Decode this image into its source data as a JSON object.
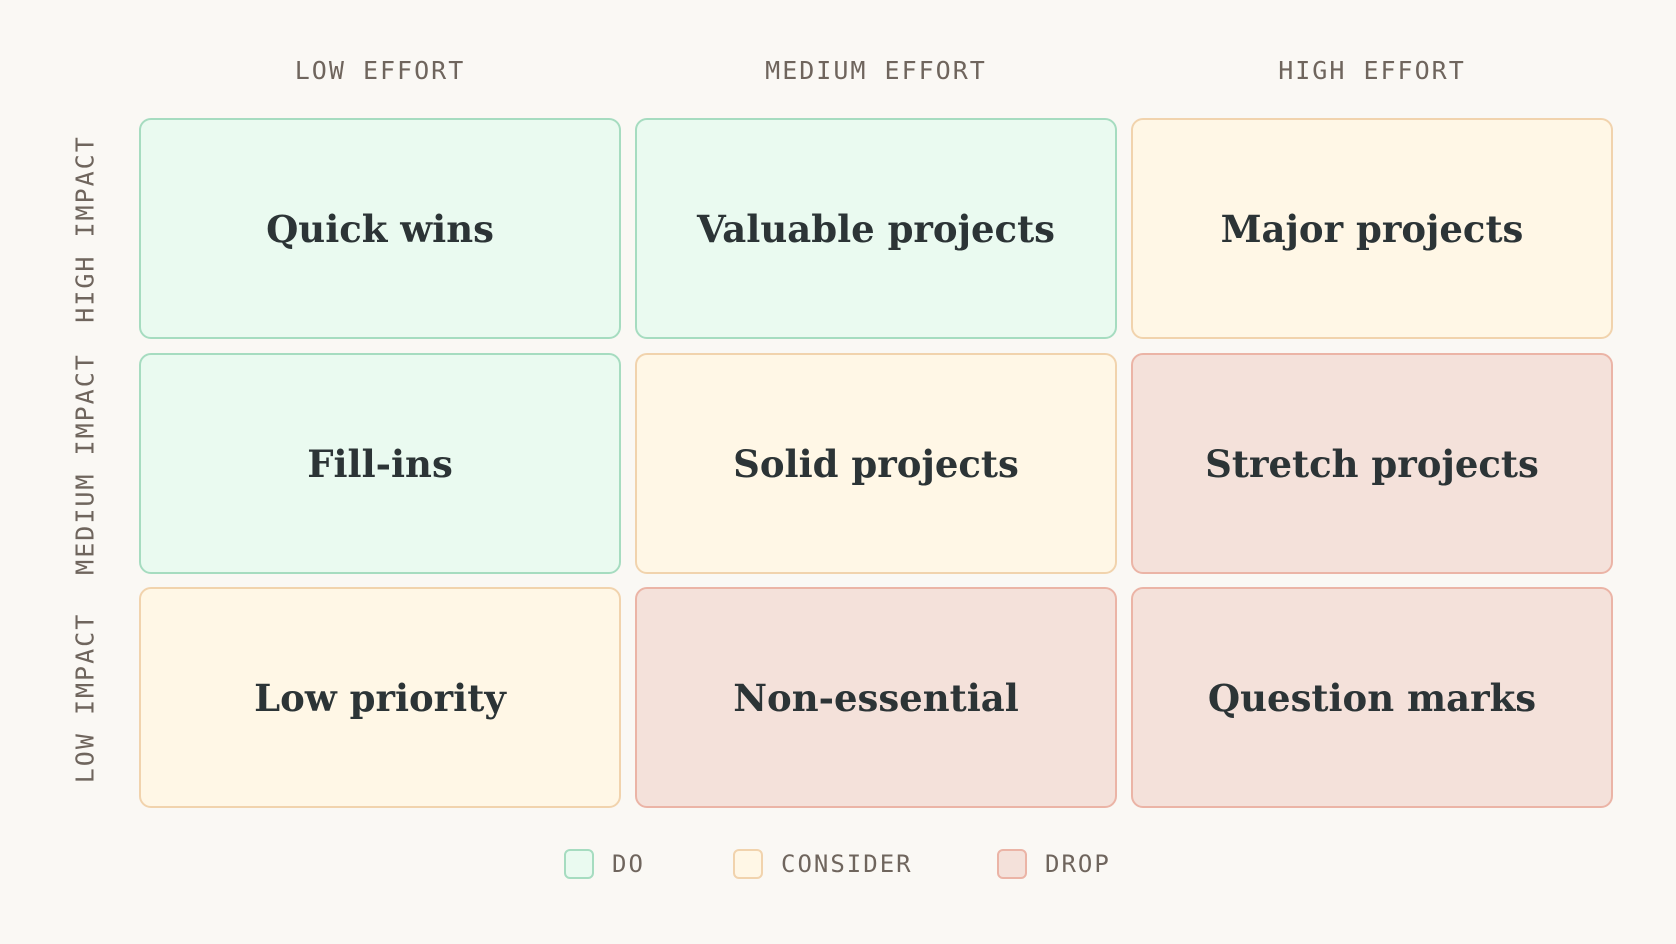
{
  "columns": [
    {
      "label": "LOW EFFORT"
    },
    {
      "label": "MEDIUM EFFORT"
    },
    {
      "label": "HIGH EFFORT"
    }
  ],
  "rows": [
    {
      "label": "HIGH IMPACT"
    },
    {
      "label": "MEDIUM IMPACT"
    },
    {
      "label": "LOW IMPACT"
    }
  ],
  "cells": [
    [
      {
        "label": "Quick wins",
        "category": "do"
      },
      {
        "label": "Valuable projects",
        "category": "do"
      },
      {
        "label": "Major projects",
        "category": "consider"
      }
    ],
    [
      {
        "label": "Fill-ins",
        "category": "do"
      },
      {
        "label": "Solid projects",
        "category": "consider"
      },
      {
        "label": "Stretch projects",
        "category": "drop"
      }
    ],
    [
      {
        "label": "Low priority",
        "category": "consider"
      },
      {
        "label": "Non-essential",
        "category": "drop"
      },
      {
        "label": "Question marks",
        "category": "drop"
      }
    ]
  ],
  "legend": [
    {
      "label": "DO",
      "category": "do",
      "color": "#eafaf0",
      "border": "#a6dcc0"
    },
    {
      "label": "CONSIDER",
      "category": "consider",
      "color": "#fff7e6",
      "border": "#f1d3ad"
    },
    {
      "label": "DROP",
      "category": "drop",
      "color": "#f4e1da",
      "border": "#ebb4a6"
    }
  ]
}
